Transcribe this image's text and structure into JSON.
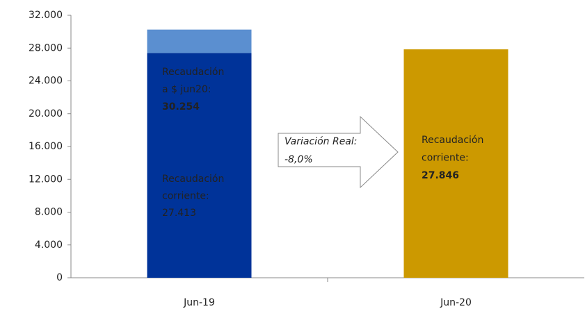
{
  "chart_data": {
    "type": "bar",
    "stacked": true,
    "categories": [
      "Jun-19",
      "Jun-20"
    ],
    "series": [
      {
        "colors": [
          "#003399",
          "#cc9900"
        ],
        "values": [
          27413,
          27846
        ],
        "value_labels": [
          "27.413",
          "27.846"
        ],
        "label_lines": [
          [
            "Recaudación",
            "corriente:"
          ],
          [
            "Recaudación",
            "corriente:"
          ]
        ]
      },
      {
        "color": "#5b8fd0",
        "values": [
          2841,
          null
        ]
      }
    ],
    "annotations": [
      {
        "lines": [
          "Recaudación",
          "a $ jun20:"
        ],
        "text": "30.254"
      },
      {
        "lines": [
          "Variación Real:"
        ],
        "text": "-8,0%"
      }
    ],
    "ylim": [
      0,
      32000
    ],
    "yticks": [
      0,
      {
        "value": 4000,
        "label": "4.000"
      },
      {
        "value": 8000,
        "label": "8.000"
      },
      {
        "value": 12000,
        "label": "12.000"
      },
      {
        "value": 16000,
        "label": "16.000"
      },
      {
        "value": 20000,
        "label": "20.000"
      },
      {
        "value": 24000,
        "label": "24.000"
      },
      {
        "value": 28000,
        "label": "28.000"
      },
      {
        "value": 32000,
        "label": "32.000"
      }
    ],
    "grid": false
  }
}
